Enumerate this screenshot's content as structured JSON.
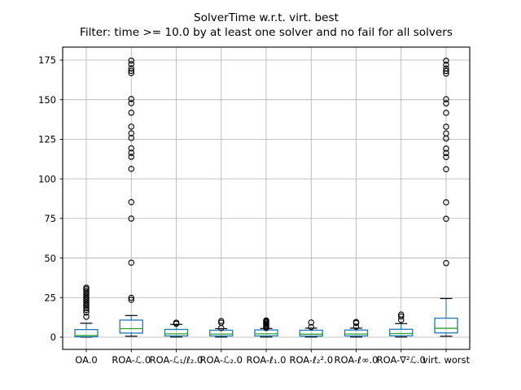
{
  "figure": {
    "background": "#ffffff"
  },
  "chart_data": {
    "type": "boxplot",
    "title": "SolverTime w.r.t. virt. best",
    "subtitle": "Filter: time >= 10.0 by at least one solver and no fail for all solvers",
    "xlabel": "",
    "ylabel": "",
    "grid": true,
    "legend": null,
    "ylim": [
      -7.7,
      183.2
    ],
    "yticks": [
      0,
      25,
      50,
      75,
      100,
      125,
      150,
      175
    ],
    "categories": [
      "OA.0",
      "ROA-ℒ.0",
      "ROA-ℒ₁/ℓ₂.0",
      "ROA-ℒ₂.0",
      "ROA-ℓ₁.0",
      "ROA-ℓ₂².0",
      "ROA-ℓ∞.0",
      "ROA-∇²ℒ.0",
      "virt. worst"
    ],
    "series": [
      {
        "label": "OA.0",
        "whislo": 0.05,
        "q1": 0.3,
        "med": 1.0,
        "q3": 4.8,
        "whishi": 8.8,
        "fliers": [
          12.9,
          15.6,
          17.2,
          18.4,
          19.6,
          20.8,
          22.0,
          23.2,
          24.4,
          25.6,
          26.8,
          28.0,
          29.2,
          30.4,
          31.3
        ]
      },
      {
        "label": "ROA-ℒ.0",
        "whislo": 0.6,
        "q1": 2.6,
        "med": 5.4,
        "q3": 10.8,
        "whishi": 13.7,
        "fliers": [
          23.6,
          24.9,
          47.1,
          74.9,
          85.3,
          106.3,
          113.9,
          116.4,
          119.3,
          125.8,
          128.8,
          133.0,
          141.8,
          147.8,
          150.4,
          166.8,
          168.2,
          169.8,
          172.5,
          174.7
        ]
      },
      {
        "label": "ROA-ℒ₁/ℓ₂.0",
        "whislo": 0.1,
        "q1": 0.8,
        "med": 2.1,
        "q3": 4.9,
        "whishi": 8.1,
        "fliers": [
          8.5,
          9.2
        ]
      },
      {
        "label": "ROA-ℒ₂.0",
        "whislo": 0.1,
        "q1": 0.8,
        "med": 2.0,
        "q3": 4.4,
        "whishi": 5.4,
        "fliers": [
          5.8,
          9.2,
          10.2
        ]
      },
      {
        "label": "ROA-ℓ₁.0",
        "whislo": 0.1,
        "q1": 0.8,
        "med": 2.1,
        "q3": 4.6,
        "whishi": 5.5,
        "fliers": [
          5.8,
          6.5,
          7.2,
          7.9,
          8.6,
          9.3,
          10.0,
          10.6
        ]
      },
      {
        "label": "ROA-ℓ₂².0",
        "whislo": 0.1,
        "q1": 0.7,
        "med": 1.9,
        "q3": 4.4,
        "whishi": 5.7,
        "fliers": [
          6.4,
          9.3
        ]
      },
      {
        "label": "ROA-ℓ∞.0",
        "whislo": 0.1,
        "q1": 0.8,
        "med": 2.0,
        "q3": 4.5,
        "whishi": 5.7,
        "fliers": [
          6.6,
          9.0,
          9.6
        ]
      },
      {
        "label": "ROA-∇²ℒ.0",
        "whislo": 0.1,
        "q1": 0.9,
        "med": 2.3,
        "q3": 5.0,
        "whishi": 8.6,
        "fliers": [
          10.9,
          13.1,
          14.3
        ]
      },
      {
        "label": "virt. worst",
        "whislo": 0.6,
        "q1": 2.7,
        "med": 5.6,
        "q3": 12.0,
        "whishi": 24.4,
        "fliers": [
          46.8,
          74.8,
          85.2,
          106.1,
          113.8,
          116.3,
          119.1,
          125.5,
          128.7,
          132.9,
          141.7,
          147.7,
          150.3,
          166.5,
          168.1,
          169.7,
          172.1,
          174.6
        ]
      }
    ],
    "colors": {
      "box": "#1f77b4",
      "whisker": "#1f77b4",
      "cap": "#000000",
      "median": "#2ca02c",
      "flier_edge": "#000000",
      "grid": "#b0b0b0",
      "frame": "#000000",
      "text": "#000000"
    }
  }
}
